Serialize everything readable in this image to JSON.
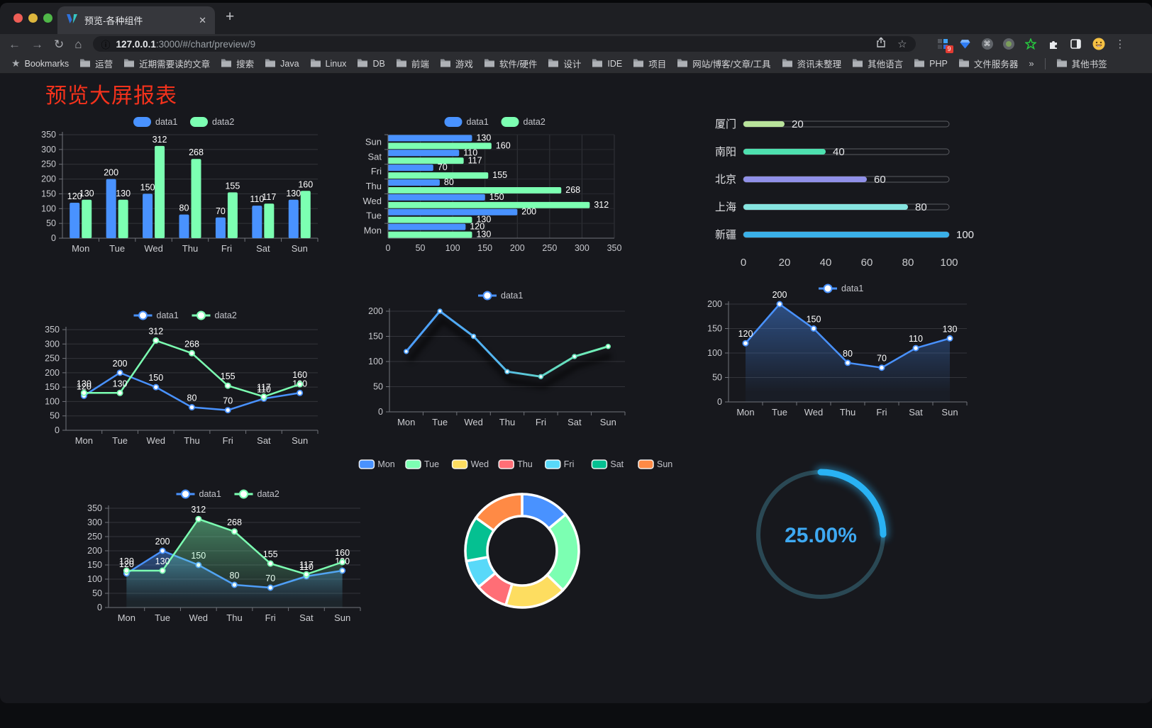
{
  "browser": {
    "tab": {
      "title": "预览-各种组件",
      "close": "✕",
      "new_tab": "+"
    },
    "address": {
      "host": "127.0.0.1",
      "rest": ":3000/#/chart/preview/9"
    },
    "icons": {
      "back": "←",
      "forward": "→",
      "reload": "↻",
      "home": "⌂",
      "info": "ⓘ",
      "star": "☆",
      "menu": "⋮"
    },
    "extensions_badge": "9",
    "bookmarks_bar": {
      "star_label": "Bookmarks",
      "folders": [
        "运营",
        "近期需要读的文章",
        "搜索",
        "Java",
        "Linux",
        "DB",
        "前端",
        "游戏",
        "软件/硬件",
        "设计",
        "IDE",
        "项目",
        "网站/博客/文章/工具",
        "资讯未整理",
        "其他语言",
        "PHP",
        "文件服务器"
      ],
      "overflow": "»",
      "other_bookmarks": "其他书签"
    }
  },
  "page": {
    "title": "预览大屏报表"
  },
  "colors": {
    "data1": "#4992ff",
    "data2": "#7cffb2",
    "palette": [
      "#4992ff",
      "#7cffb2",
      "#fddd60",
      "#ff6e76",
      "#58d9f9",
      "#05c091",
      "#ff8a45"
    ],
    "title_red": "#f4321c",
    "gauge_arc": "#29b2f4",
    "gauge_track": "#2a4854",
    "grid": "#33343a",
    "axis": "#71737a",
    "tick_label": "#c7c8cd",
    "value_label": "#ffffff"
  },
  "chart_data": [
    {
      "id": "c1",
      "type": "bar",
      "categories": [
        "Mon",
        "Tue",
        "Wed",
        "Thu",
        "Fri",
        "Sat",
        "Sun"
      ],
      "series": [
        {
          "name": "data1",
          "color": "#4992ff",
          "values": [
            120,
            200,
            150,
            80,
            70,
            110,
            130
          ]
        },
        {
          "name": "data2",
          "color": "#7cffb2",
          "values": [
            130,
            130,
            312,
            268,
            155,
            117,
            160
          ]
        }
      ],
      "ylim": [
        0,
        350
      ],
      "ystep": 50,
      "labels": true,
      "legend": true
    },
    {
      "id": "c2",
      "type": "hbar",
      "categories_top_to_bottom": [
        "Sun",
        "Sat",
        "Fri",
        "Thu",
        "Wed",
        "Tue",
        "Mon"
      ],
      "series": [
        {
          "name": "data1",
          "color": "#4992ff",
          "values": [
            130,
            110,
            70,
            80,
            150,
            200,
            120
          ]
        },
        {
          "name": "data2",
          "color": "#7cffb2",
          "values": [
            160,
            117,
            155,
            268,
            312,
            130,
            130
          ]
        }
      ],
      "xlim": [
        0,
        350
      ],
      "xstep": 50,
      "labels": true,
      "legend": true
    },
    {
      "id": "c3",
      "type": "progress",
      "items": [
        {
          "label": "厦门",
          "value": 20,
          "color": "#b9e39b"
        },
        {
          "label": "南阳",
          "value": 40,
          "color": "#4ee0af"
        },
        {
          "label": "北京",
          "value": 60,
          "color": "#9090e8"
        },
        {
          "label": "上海",
          "value": 80,
          "color": "#86e5e0"
        },
        {
          "label": "新疆",
          "value": 100,
          "color": "#3ab0e8"
        }
      ],
      "xticks": [
        0,
        20,
        40,
        60,
        80,
        100
      ],
      "max": 100
    },
    {
      "id": "c4",
      "type": "line",
      "categories": [
        "Mon",
        "Tue",
        "Wed",
        "Thu",
        "Fri",
        "Sat",
        "Sun"
      ],
      "series": [
        {
          "name": "data1",
          "color": "#4992ff",
          "values": [
            120,
            200,
            150,
            80,
            70,
            110,
            130
          ]
        },
        {
          "name": "data2",
          "color": "#7cffb2",
          "values": [
            130,
            130,
            312,
            268,
            155,
            117,
            160
          ]
        }
      ],
      "ylim": [
        0,
        350
      ],
      "ystep": 50,
      "labels": true,
      "legend": true
    },
    {
      "id": "c5",
      "type": "line-gradient",
      "categories": [
        "Mon",
        "Tue",
        "Wed",
        "Thu",
        "Fri",
        "Sat",
        "Sun"
      ],
      "series": [
        {
          "name": "data1",
          "color": "#4992ff",
          "values": [
            120,
            200,
            150,
            80,
            70,
            110,
            130
          ]
        }
      ],
      "gradient": [
        "#4a97ff",
        "#54b6f0",
        "#62d9c0",
        "#7cffb2"
      ],
      "ylim": [
        0,
        200
      ],
      "ystep": 50,
      "labels": false,
      "legend": true,
      "shadow": true
    },
    {
      "id": "c6",
      "type": "line-area",
      "categories": [
        "Mon",
        "Tue",
        "Wed",
        "Thu",
        "Fri",
        "Sat",
        "Sun"
      ],
      "series": [
        {
          "name": "data1",
          "color": "#4992ff",
          "values": [
            120,
            200,
            150,
            80,
            70,
            110,
            130
          ]
        }
      ],
      "ylim": [
        0,
        200
      ],
      "ystep": 50,
      "labels": true,
      "legend": true
    },
    {
      "id": "c7",
      "type": "line",
      "area": true,
      "categories": [
        "Mon",
        "Tue",
        "Wed",
        "Thu",
        "Fri",
        "Sat",
        "Sun"
      ],
      "series": [
        {
          "name": "data1",
          "color": "#4992ff",
          "values": [
            120,
            200,
            150,
            80,
            70,
            110,
            130
          ]
        },
        {
          "name": "data2",
          "color": "#7cffb2",
          "values": [
            130,
            130,
            312,
            268,
            155,
            117,
            160
          ]
        }
      ],
      "ylim": [
        0,
        350
      ],
      "ystep": 50,
      "labels": true,
      "legend": true
    },
    {
      "id": "donut",
      "type": "pie",
      "categories": [
        "Mon",
        "Tue",
        "Wed",
        "Thu",
        "Fri",
        "Sat",
        "Sun"
      ],
      "values": [
        120,
        200,
        150,
        80,
        70,
        110,
        130
      ],
      "colors": [
        "#4992ff",
        "#7cffb2",
        "#fddd60",
        "#ff6e76",
        "#58d9f9",
        "#05c091",
        "#ff8a45"
      ],
      "legend": true
    },
    {
      "id": "gauge",
      "type": "gauge",
      "value": 25,
      "max": 100,
      "display": "25.00%"
    }
  ]
}
